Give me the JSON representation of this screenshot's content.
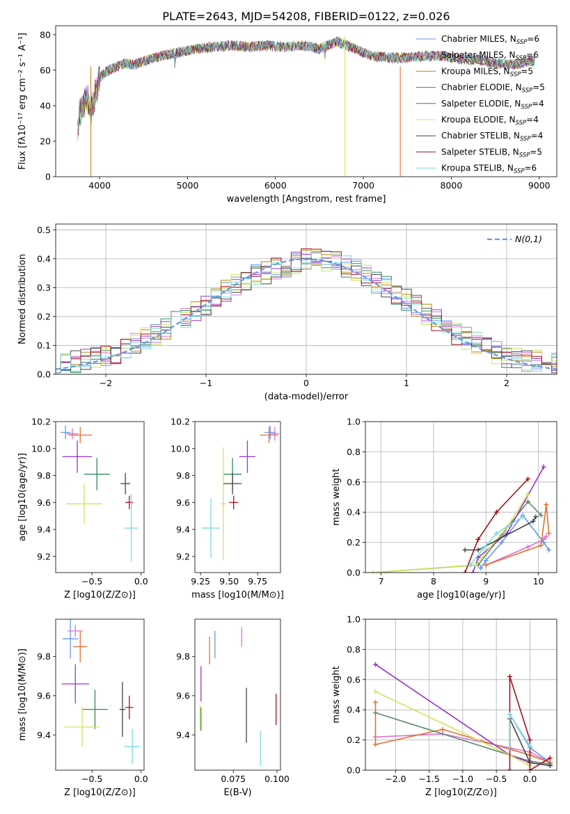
{
  "figure": {
    "title": "PLATE=2643, MJD=54208, FIBERID=0122, z=0.026"
  },
  "chart_data": [
    {
      "id": "spectrum",
      "type": "line",
      "xlabel": "wavelength [Angstrom, rest frame]",
      "ylabel": "Flux [fλ10⁻¹⁷ erg cm⁻² s⁻¹ A⁻¹]",
      "xlim": [
        3500,
        9200
      ],
      "ylim": [
        0,
        85
      ],
      "xticks": [
        4000,
        5000,
        6000,
        7000,
        8000,
        9000
      ],
      "yticks": [
        0,
        20,
        40,
        60,
        80
      ],
      "legend_position": "top-right",
      "envelope": {
        "x": [
          3750,
          3800,
          3850,
          3900,
          3950,
          4000,
          4100,
          4200,
          4300,
          4400,
          4500,
          4700,
          4900,
          5100,
          5300,
          5500,
          5700,
          5900,
          6100,
          6300,
          6500,
          6700,
          6900,
          7100,
          7300,
          7500,
          7700,
          7900,
          8100,
          8300,
          8500,
          8700,
          8900
        ],
        "y": [
          30,
          40,
          45,
          38,
          45,
          56,
          60,
          62,
          64,
          63,
          65,
          68,
          70,
          72,
          73,
          74,
          73,
          74,
          73,
          74,
          72,
          76,
          72,
          68,
          67,
          67,
          68,
          68,
          66,
          66,
          64,
          63,
          65
        ]
      },
      "series": [
        {
          "name": "Chabrier MILES, N_SSP=6",
          "label_main": "Chabrier MILES, N",
          "label_sub": "SSP",
          "label_tail": "=6",
          "color": "#6495ED"
        },
        {
          "name": "Salpeter MILES, N_SSP=6",
          "label_main": "Salpeter MILES, N",
          "label_sub": "SSP",
          "label_tail": "=6",
          "color": "#DA70D6"
        },
        {
          "name": "Kroupa MILES, N_SSP=5",
          "label_main": "Kroupa MILES, N",
          "label_sub": "SSP",
          "label_tail": "=5",
          "color": "#B8860B"
        },
        {
          "name": "Chabrier ELODIE, N_SSP=5",
          "label_main": "Chabrier ELODIE, N",
          "label_sub": "SSP",
          "label_tail": "=5",
          "color": "#2E8B57"
        },
        {
          "name": "Salpeter ELODIE, N_SSP=4",
          "label_main": "Salpeter ELODIE, N",
          "label_sub": "SSP",
          "label_tail": "=4",
          "color": "#9932CC"
        },
        {
          "name": "Kroupa ELODIE, N_SSP=4",
          "label_main": "Kroupa ELODIE, N",
          "label_sub": "SSP",
          "label_tail": "=4",
          "color": "#D4E157"
        },
        {
          "name": "Chabrier STELIB, N_SSP=4",
          "label_main": "Chabrier STELIB, N",
          "label_sub": "SSP",
          "label_tail": "=4",
          "color": "#444444"
        },
        {
          "name": "Salpeter STELIB, N_SSP=5",
          "label_main": "Salpeter STELIB, N",
          "label_sub": "SSP",
          "label_tail": "=5",
          "color": "#A0111C"
        },
        {
          "name": "Kroupa STELIB, N_SSP=6",
          "label_main": "Kroupa STELIB, N",
          "label_sub": "SSP",
          "label_tail": "=6",
          "color": "#7ADBE0"
        }
      ],
      "features": [
        {
          "x": 3900,
          "y_top": 62,
          "y_bottom": 0,
          "color": "#B8860B"
        },
        {
          "x": 6790,
          "y_top": 79,
          "y_bottom": 0,
          "color": "#D4E157"
        },
        {
          "x": 7420,
          "y_top": 62,
          "y_bottom": 0,
          "color": "#E07030"
        }
      ]
    },
    {
      "id": "residuals",
      "type": "line",
      "xlabel": "(data-model)/error",
      "ylabel": "Normed distribution",
      "xlim": [
        -2.5,
        2.5
      ],
      "ylim": [
        0,
        0.52
      ],
      "xticks": [
        -2,
        -1,
        0,
        1,
        2
      ],
      "yticks": [
        0.0,
        0.1,
        0.2,
        0.3,
        0.4,
        0.5
      ],
      "grid": true,
      "legend_position": "top-right",
      "legend_label": "N(0,1)",
      "reference_curve": "standard normal pdf",
      "reference_color": "#6495ED",
      "hist_envelope": {
        "x": [
          -2.5,
          -2.0,
          -1.5,
          -1.0,
          -0.75,
          -0.5,
          -0.25,
          0.0,
          0.25,
          0.5,
          0.75,
          1.0,
          1.5,
          2.0,
          2.5
        ],
        "y": [
          0.035,
          0.06,
          0.14,
          0.24,
          0.3,
          0.34,
          0.37,
          0.4,
          0.39,
          0.36,
          0.31,
          0.26,
          0.14,
          0.06,
          0.035
        ]
      }
    },
    {
      "id": "age-vs-z",
      "type": "scatter",
      "xlabel": "Z [log10(Z/Z⊙)]",
      "ylabel": "age [log10(age/yr)]",
      "xlim": [
        -0.87,
        0.03
      ],
      "ylim": [
        9.08,
        10.2
      ],
      "xticks": [
        -0.5,
        0.0
      ],
      "yticks": [
        9.2,
        9.4,
        9.6,
        9.8,
        10.0,
        10.2
      ],
      "points": [
        {
          "x": -0.77,
          "y": 10.12,
          "xerr": 0.05,
          "yerr": 0.05,
          "color": "#6495ED"
        },
        {
          "x": -0.7,
          "y": 10.11,
          "xerr": 0.06,
          "yerr": 0.04,
          "color": "#DA70D6"
        },
        {
          "x": -0.62,
          "y": 10.1,
          "xerr": 0.12,
          "yerr": 0.06,
          "color": "#E07030"
        },
        {
          "x": -0.45,
          "y": 9.81,
          "xerr": 0.13,
          "yerr": 0.12,
          "color": "#2E8B57"
        },
        {
          "x": -0.65,
          "y": 9.94,
          "xerr": 0.15,
          "yerr": 0.12,
          "color": "#9932CC"
        },
        {
          "x": -0.58,
          "y": 9.59,
          "xerr": 0.18,
          "yerr": 0.15,
          "color": "#D4E157"
        },
        {
          "x": -0.16,
          "y": 9.74,
          "xerr": 0.05,
          "yerr": 0.08,
          "color": "#444444"
        },
        {
          "x": -0.12,
          "y": 9.6,
          "xerr": 0.04,
          "yerr": 0.05,
          "color": "#A0111C"
        },
        {
          "x": -0.1,
          "y": 9.41,
          "xerr": 0.07,
          "yerr": 0.25,
          "color": "#7ADBE0"
        }
      ]
    },
    {
      "id": "age-vs-mass",
      "type": "scatter",
      "xlabel": "mass [log10(M/M⊙)]",
      "ylabel": "",
      "xlim": [
        9.2,
        9.95
      ],
      "ylim": [
        9.08,
        10.2
      ],
      "xticks": [
        9.25,
        9.5,
        9.75
      ],
      "yticks": [
        9.2,
        9.4,
        9.6,
        9.8,
        10.0,
        10.2
      ],
      "points": [
        {
          "x": 9.86,
          "y": 10.12,
          "xerr": 0.05,
          "yerr": 0.05,
          "color": "#6495ED"
        },
        {
          "x": 9.9,
          "y": 10.11,
          "xerr": 0.04,
          "yerr": 0.05,
          "color": "#DA70D6"
        },
        {
          "x": 9.85,
          "y": 10.1,
          "xerr": 0.08,
          "yerr": 0.06,
          "color": "#E07030"
        },
        {
          "x": 9.53,
          "y": 9.81,
          "xerr": 0.08,
          "yerr": 0.12,
          "color": "#2E8B57"
        },
        {
          "x": 9.66,
          "y": 9.94,
          "xerr": 0.07,
          "yerr": 0.12,
          "color": "#9932CC"
        },
        {
          "x": 9.45,
          "y": 9.59,
          "xerr": 0.02,
          "yerr": 0.42,
          "color": "#D4E157"
        },
        {
          "x": 9.53,
          "y": 9.74,
          "xerr": 0.08,
          "yerr": 0.08,
          "color": "#444444"
        },
        {
          "x": 9.54,
          "y": 9.6,
          "xerr": 0.04,
          "yerr": 0.05,
          "color": "#A0111C"
        },
        {
          "x": 9.34,
          "y": 9.41,
          "xerr": 0.08,
          "yerr": 0.22,
          "color": "#7ADBE0"
        }
      ]
    },
    {
      "id": "weight-vs-age",
      "type": "line",
      "xlabel": "age [log10(age/yr)]",
      "ylabel": "mass weight",
      "xlim": [
        6.7,
        10.35
      ],
      "ylim": [
        0,
        1.0
      ],
      "xticks": [
        7,
        8,
        9,
        10
      ],
      "yticks": [
        0.0,
        0.2,
        0.4,
        0.6,
        0.8,
        1.0
      ],
      "grid": true,
      "series": [
        {
          "color": "#6495ED",
          "x": [
            8.9,
            9.0,
            9.3,
            9.7,
            10.1,
            10.2
          ],
          "y": [
            0.03,
            0.08,
            0.2,
            0.38,
            0.2,
            0.15
          ]
        },
        {
          "color": "#DA70D6",
          "x": [
            9.0,
            9.8,
            10.1,
            10.15
          ],
          "y": [
            0.05,
            0.17,
            0.22,
            0.24
          ]
        },
        {
          "color": "#E07030",
          "x": [
            9.0,
            10.05,
            10.15,
            10.2
          ],
          "y": [
            0.05,
            0.18,
            0.45,
            0.26
          ]
        },
        {
          "color": "#5C8A68",
          "x": [
            6.85,
            8.85,
            9.3,
            9.8,
            10.05
          ],
          "y": [
            0.0,
            0.05,
            0.25,
            0.47,
            0.38
          ]
        },
        {
          "color": "#9932CC",
          "x": [
            8.75,
            8.85,
            9.4,
            10.1
          ],
          "y": [
            0.0,
            0.1,
            0.26,
            0.7
          ]
        },
        {
          "color": "#D4E157",
          "x": [
            6.85,
            8.8,
            9.4,
            9.8
          ],
          "y": [
            0.0,
            0.05,
            0.3,
            0.52
          ]
        },
        {
          "color": "#444444",
          "x": [
            8.6,
            8.85,
            9.9,
            9.95
          ],
          "y": [
            0.15,
            0.15,
            0.34,
            0.37
          ]
        },
        {
          "color": "#A0111C",
          "x": [
            8.6,
            8.85,
            9.2,
            9.8
          ],
          "y": [
            0.0,
            0.22,
            0.4,
            0.62
          ]
        },
        {
          "color": "#7ADBE0",
          "x": [
            8.7,
            8.95,
            9.2,
            9.7
          ],
          "y": [
            0.05,
            0.16,
            0.26,
            0.37
          ]
        }
      ]
    },
    {
      "id": "mass-vs-z",
      "type": "scatter",
      "xlabel": "Z [log10(Z/Z⊙)]",
      "ylabel": "mass [log10(M/M⊙)]",
      "xlim": [
        -0.87,
        0.03
      ],
      "ylim": [
        9.22,
        9.99
      ],
      "xticks": [
        -0.5,
        0.0
      ],
      "yticks": [
        9.4,
        9.6,
        9.8
      ],
      "points": [
        {
          "x": -0.72,
          "y": 9.89,
          "xerr": 0.08,
          "yerr": 0.1,
          "color": "#6495ED"
        },
        {
          "x": -0.67,
          "y": 9.93,
          "xerr": 0.08,
          "yerr": 0.03,
          "color": "#DA70D6"
        },
        {
          "x": -0.62,
          "y": 9.85,
          "xerr": 0.07,
          "yerr": 0.08,
          "color": "#E07030"
        },
        {
          "x": -0.47,
          "y": 9.53,
          "xerr": 0.13,
          "yerr": 0.1,
          "color": "#2E8B57"
        },
        {
          "x": -0.67,
          "y": 9.66,
          "xerr": 0.14,
          "yerr": 0.1,
          "color": "#9932CC"
        },
        {
          "x": -0.6,
          "y": 9.44,
          "xerr": 0.18,
          "yerr": 0.1,
          "color": "#D4E157"
        },
        {
          "x": -0.19,
          "y": 9.53,
          "xerr": 0.03,
          "yerr": 0.14,
          "color": "#444444"
        },
        {
          "x": -0.12,
          "y": 9.54,
          "xerr": 0.04,
          "yerr": 0.06,
          "color": "#A0111C"
        },
        {
          "x": -0.09,
          "y": 9.34,
          "xerr": 0.08,
          "yerr": 0.09,
          "color": "#7ADBE0"
        }
      ]
    },
    {
      "id": "mass-vs-ebv",
      "type": "scatter",
      "xlabel": "E(B-V)",
      "ylabel": "",
      "xlim": [
        0.053,
        0.102
      ],
      "ylim": [
        9.22,
        9.99
      ],
      "xticks": [
        0.075,
        0.1
      ],
      "xtick_labels": [
        "0.075",
        "0.100"
      ],
      "yticks": [
        9.4,
        9.6,
        9.8
      ],
      "points": [
        {
          "x": 0.0645,
          "y": 9.86,
          "yerr": 0.07,
          "color": "#6495ED"
        },
        {
          "x": 0.0798,
          "y": 9.9,
          "yerr": 0.05,
          "color": "#DA70D6"
        },
        {
          "x": 0.0614,
          "y": 9.83,
          "yerr": 0.07,
          "color": "#E07030"
        },
        {
          "x": 0.0565,
          "y": 9.48,
          "yerr": 0.06,
          "color": "#2E8B57"
        },
        {
          "x": 0.0565,
          "y": 9.66,
          "yerr": 0.09,
          "color": "#9932CC"
        },
        {
          "x": 0.056,
          "y": 9.49,
          "yerr": 0.06,
          "color": "#D4E157"
        },
        {
          "x": 0.0825,
          "y": 9.5,
          "yerr": 0.14,
          "color": "#444444"
        },
        {
          "x": 0.0995,
          "y": 9.53,
          "yerr": 0.08,
          "color": "#A0111C"
        },
        {
          "x": 0.0905,
          "y": 9.33,
          "yerr": 0.09,
          "color": "#7ADBE0"
        }
      ]
    },
    {
      "id": "weight-vs-z",
      "type": "line",
      "xlabel": "Z [log10(Z/Z⊙)]",
      "ylabel": "mass weight",
      "xlim": [
        -2.45,
        0.4
      ],
      "ylim": [
        0,
        1.0
      ],
      "xticks": [
        -2.0,
        -1.5,
        -1.0,
        -0.5,
        0.0
      ],
      "yticks": [
        0.0,
        0.2,
        0.4,
        0.6,
        0.8,
        1.0
      ],
      "grid": true,
      "series": [
        {
          "color": "#6495ED",
          "x": [
            -0.3,
            -0.3,
            0.0,
            0.3
          ],
          "y": [
            0.15,
            0.37,
            0.15,
            0.05
          ]
        },
        {
          "color": "#DA70D6",
          "x": [
            -2.3,
            -1.3,
            0.0,
            0.3
          ],
          "y": [
            0.22,
            0.24,
            0.12,
            0.05
          ]
        },
        {
          "color": "#E07030",
          "x": [
            -2.3,
            -2.3,
            -1.3,
            0.0,
            0.3
          ],
          "y": [
            0.45,
            0.17,
            0.27,
            0.1,
            0.05
          ]
        },
        {
          "color": "#5C8A68",
          "x": [
            -2.3,
            -0.3,
            0.0,
            0.3
          ],
          "y": [
            0.38,
            0.1,
            0.06,
            0.04
          ]
        },
        {
          "color": "#9932CC",
          "x": [
            -2.3,
            -0.3,
            0.0,
            0.3
          ],
          "y": [
            0.7,
            0.1,
            0.05,
            0.03
          ]
        },
        {
          "color": "#D4E157",
          "x": [
            -2.3,
            -0.3,
            0.0
          ],
          "y": [
            0.52,
            0.1,
            0.03
          ]
        },
        {
          "color": "#444444",
          "x": [
            -0.3,
            -0.3,
            0.0,
            0.3
          ],
          "y": [
            0.15,
            0.34,
            0.05,
            0.03
          ]
        },
        {
          "color": "#A0111C",
          "x": [
            -0.3,
            -0.3,
            0.0,
            0.0,
            0.3
          ],
          "y": [
            0.0,
            0.62,
            0.2,
            0.0,
            0.08
          ]
        },
        {
          "color": "#7ADBE0",
          "x": [
            -0.3,
            -0.3,
            0.0
          ],
          "y": [
            0.15,
            0.37,
            0.16
          ]
        }
      ]
    }
  ]
}
